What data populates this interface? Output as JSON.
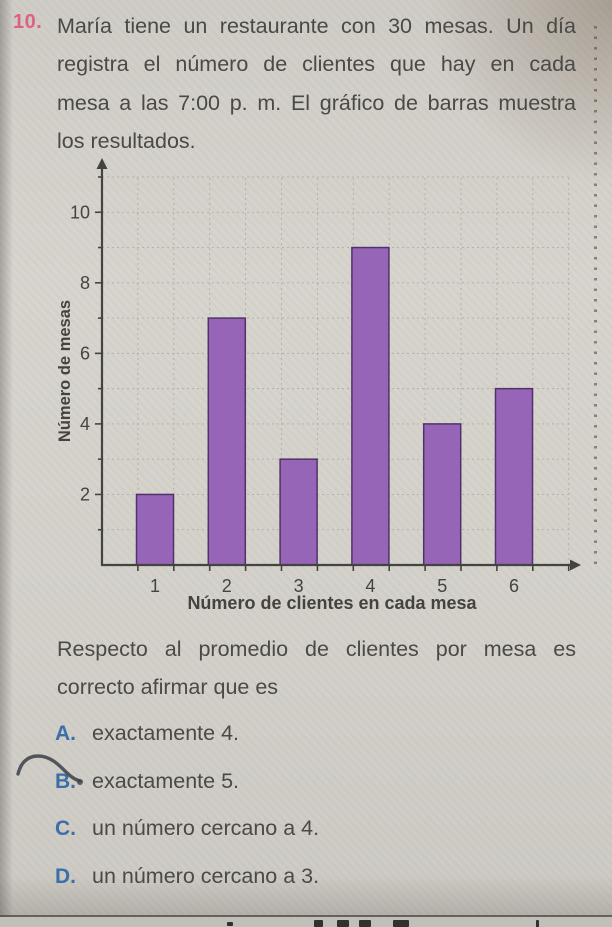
{
  "page": {
    "problem_number": "10.",
    "problem_lines": [
      "María tiene un restaurante con 30 mesas. Un día",
      "registra el número de clientes que hay en cada",
      "mesa a las 7:00 p. m. El gráfico de barras muestra",
      "los resultados."
    ],
    "question_lines": [
      "Respecto al promedio de clientes por mesa es",
      "correcto afirmar que es"
    ],
    "options": [
      {
        "letter": "A.",
        "text": "exactamente 4."
      },
      {
        "letter": "B.",
        "text": "exactamente 5."
      },
      {
        "letter": "C.",
        "text": "un número cercano a 4."
      },
      {
        "letter": "D.",
        "text": "un número cercano a 3."
      }
    ]
  },
  "chart_data": {
    "type": "bar",
    "categories": [
      "1",
      "2",
      "3",
      "4",
      "5",
      "6"
    ],
    "values": [
      2,
      7,
      3,
      9,
      4,
      5
    ],
    "title": "",
    "xlabel": "Número de clientes en cada mesa",
    "ylabel": "Número de mesas",
    "ylim": [
      0,
      11
    ],
    "ytick_labels": [
      2,
      4,
      6,
      8,
      10
    ],
    "grid": true,
    "legend": false
  },
  "colors": {
    "bar_fill": "#9765b8",
    "bar_border": "#503269",
    "axis": "#45433f",
    "grid": "#b3afa7",
    "text": "#4b4946",
    "option_letter": "#3b6fa7",
    "problem_number": "#e0607f",
    "scribble": "#3f444b",
    "paper": "#d2cfc9"
  }
}
